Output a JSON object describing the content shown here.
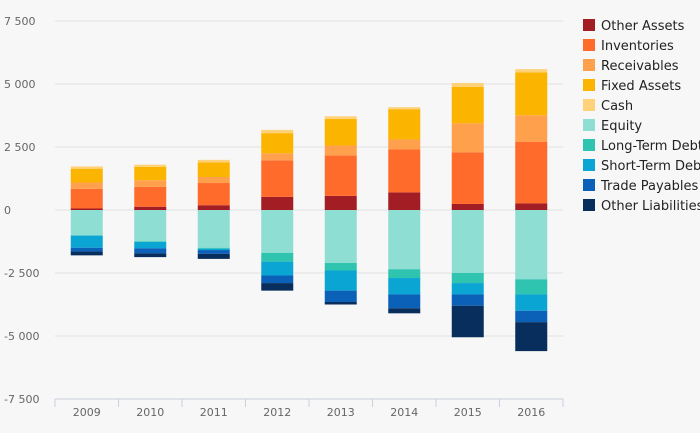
{
  "chart_data": {
    "type": "bar",
    "stacked": true,
    "categories": [
      "2009",
      "2010",
      "2011",
      "2012",
      "2013",
      "2014",
      "2015",
      "2016"
    ],
    "ylim": [
      -7500,
      7500
    ],
    "yticks": [
      7500,
      5000,
      2500,
      0,
      -2500,
      -5000,
      -7500
    ],
    "ytick_labels": [
      "7 500",
      "5 000",
      "2 500",
      "0",
      "-2 500",
      "-5 000",
      "-7 500"
    ],
    "grid": true,
    "legend_position": "right",
    "series": [
      {
        "name": "Other Assets",
        "color": "#a31d24",
        "values": [
          60,
          130,
          190,
          520,
          560,
          700,
          240,
          260
        ]
      },
      {
        "name": "Inventories",
        "color": "#ff6b2b",
        "values": [
          780,
          790,
          880,
          1450,
          1600,
          1700,
          2050,
          2450
        ]
      },
      {
        "name": "Receivables",
        "color": "#ffa04d",
        "values": [
          250,
          260,
          240,
          280,
          400,
          400,
          1150,
          1050
        ]
      },
      {
        "name": "Fixed Assets",
        "color": "#fbb400",
        "values": [
          550,
          530,
          580,
          800,
          1050,
          1200,
          1450,
          1700
        ]
      },
      {
        "name": "Cash",
        "color": "#ffd27a",
        "values": [
          90,
          90,
          100,
          130,
          110,
          80,
          150,
          130
        ]
      },
      {
        "name": "Equity",
        "color": "#8fded4",
        "values": [
          -1000,
          -1250,
          -1500,
          -1700,
          -2100,
          -2350,
          -2500,
          -2750
        ]
      },
      {
        "name": "Long-Term Debt",
        "color": "#2ec4b0",
        "values": [
          -20,
          -20,
          -40,
          -350,
          -300,
          -350,
          -400,
          -600
        ]
      },
      {
        "name": "Short-Term Debt",
        "color": "#0aa5d2",
        "values": [
          -480,
          -250,
          -50,
          -550,
          -800,
          -650,
          -450,
          -650
        ]
      },
      {
        "name": "Trade Payables",
        "color": "#0b60b8",
        "values": [
          -150,
          -200,
          -150,
          -300,
          -450,
          -550,
          -450,
          -450
        ]
      },
      {
        "name": "Other Liabilities",
        "color": "#072e5c",
        "values": [
          -150,
          -150,
          -200,
          -300,
          -100,
          -200,
          -1250,
          -1150
        ]
      }
    ]
  }
}
